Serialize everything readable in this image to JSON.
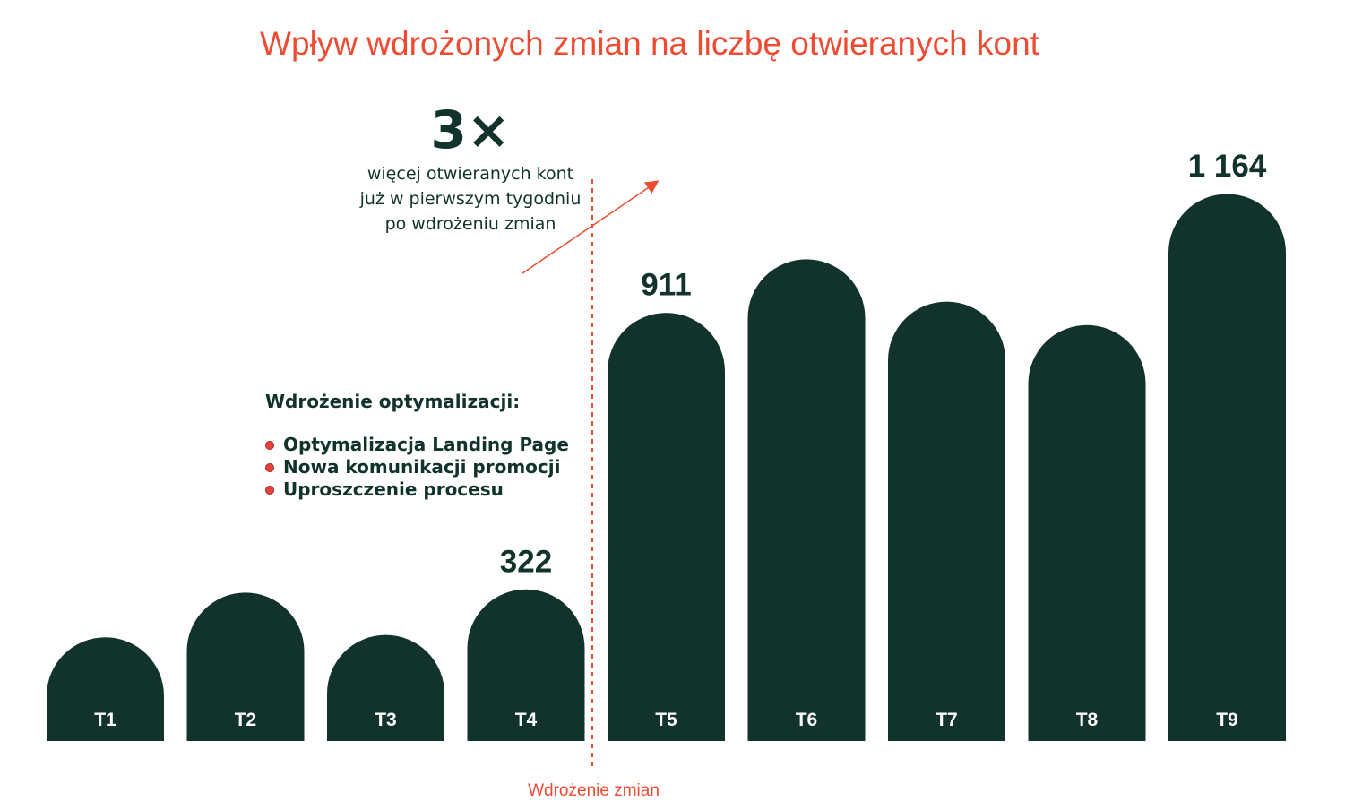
{
  "title": "Wpływ wdrożonych zmian na liczbę otwieranych kont",
  "callout": {
    "big": "3×",
    "lines": [
      "więcej otwieranych kont",
      "już w pierwszym tygodniu",
      "po wdrożeniu zmian"
    ]
  },
  "optimizations": {
    "heading": "Wdrożenie optymalizacji:",
    "items": [
      "Optymalizacja  Landing  Page",
      "Nowa komunikacji  promocji",
      "Uproszczenie  procesu"
    ]
  },
  "change_label": "Wdrożenie zmian",
  "colors": {
    "bar": "#11332b",
    "accent": "#ee4b33"
  },
  "chart_data": {
    "type": "bar",
    "categories": [
      "T1",
      "T2",
      "T3",
      "T4",
      "T5",
      "T6",
      "T7",
      "T8",
      "T9"
    ],
    "values": [
      220,
      315,
      225,
      322,
      911,
      1025,
      935,
      885,
      1164
    ],
    "value_labels": [
      "",
      "",
      "",
      "322",
      "911",
      "",
      "",
      "",
      "1 164"
    ],
    "ylim": [
      0,
      1164
    ],
    "grid": false,
    "legend": "none",
    "annotation_after_category": "T4"
  }
}
